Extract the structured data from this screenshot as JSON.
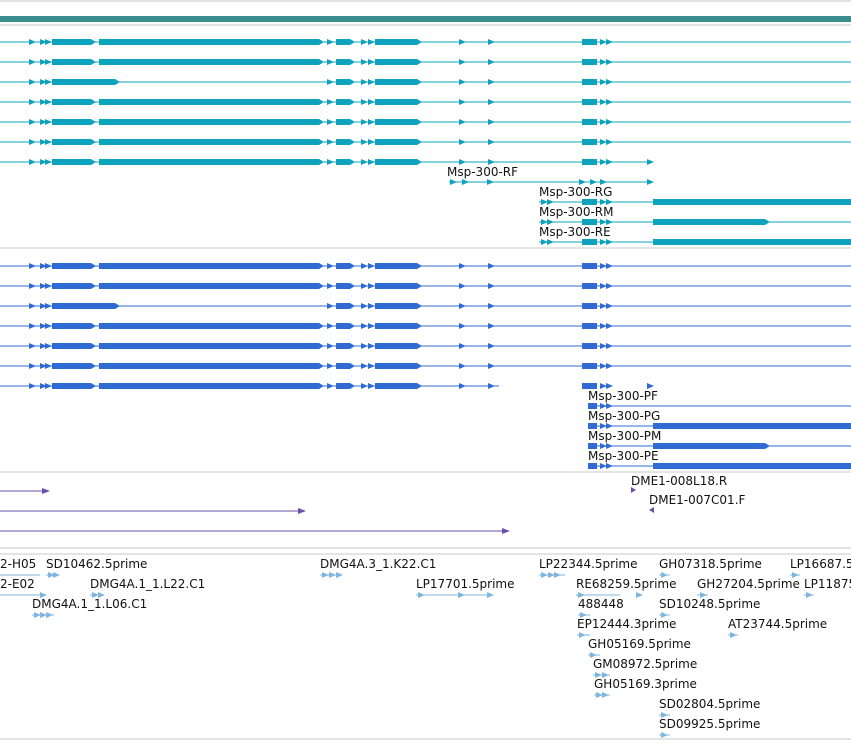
{
  "colors": {
    "top_bar": "#3b8f8f",
    "transcript_teal": "#0ea3bd",
    "transcript_blue": "#2f6bd3",
    "cdna_purple": "#6a4fa8",
    "est_lightblue": "#7fb6de",
    "separator": "#c8c8c8"
  },
  "transcript_track": {
    "labels": [
      "Msp-300-RF",
      "Msp-300-RG",
      "Msp-300-RM",
      "Msp-300-RE"
    ]
  },
  "protein_track": {
    "labels": [
      "Msp-300-PF",
      "Msp-300-PG",
      "Msp-300-PM",
      "Msp-300-PE"
    ]
  },
  "cdna_track": {
    "labels": [
      "DME1-008L18.R",
      "DME1-007C01.F"
    ]
  },
  "est_track": {
    "labels": [
      "2-H05",
      "SD10462.5prime",
      "DMG4A.3_1.K22.C1",
      "LP22344.5prime",
      "GH07318.5prime",
      "LP16687.5",
      "2-E02",
      "DMG4A.1_1.L22.C1",
      "LP17701.5prime",
      "RE68259.5prime",
      "GH27204.5prime",
      "LP11875",
      "DMG4A.1_1.L06.C1",
      "488448",
      "SD10248.5prime",
      "EP12444.3prime",
      "AT23744.5prime",
      "GH05169.5prime",
      "GM08972.5prime",
      "GH05169.3prime",
      "SD02804.5prime",
      "SD09925.5prime"
    ]
  }
}
